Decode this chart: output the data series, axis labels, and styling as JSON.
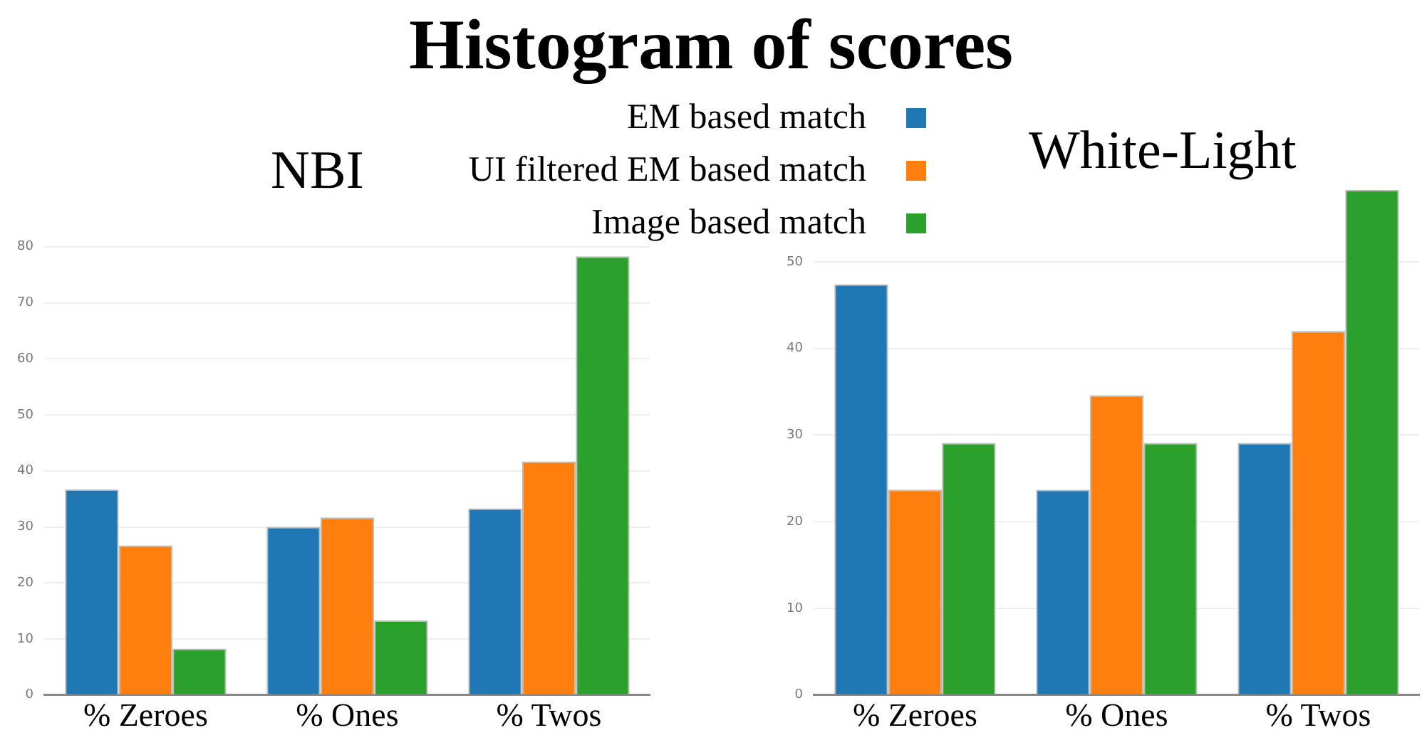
{
  "chart_data": [
    {
      "type": "bar",
      "title": "Histogram of scores",
      "subtitle": "NBI",
      "categories": [
        "% Zeroes",
        "% Ones",
        "% Twos"
      ],
      "series": [
        {
          "name": "EM based match",
          "color": "#1f77b4",
          "values": [
            36.7,
            30,
            33.3
          ]
        },
        {
          "name": "UI filtered EM based match",
          "color": "#ff7f0e",
          "values": [
            26.7,
            31.7,
            41.7
          ]
        },
        {
          "name": "Image based match",
          "color": "#2ca02c",
          "values": [
            8.3,
            13.3,
            78.3
          ]
        }
      ],
      "ylim": [
        0,
        80
      ],
      "yticks": [
        0,
        10,
        20,
        30,
        40,
        50,
        60,
        70,
        80
      ],
      "grid": "y",
      "legend": "top right"
    },
    {
      "type": "bar",
      "title": "White-Light",
      "categories": [
        "% Zeroes",
        "% Ones",
        "% Twos"
      ],
      "series": [
        {
          "color": "#1f77b4",
          "values": [
            47.4,
            23.7,
            29.1
          ]
        },
        {
          "color": "#ff7f0e",
          "values": [
            23.7,
            34.6,
            42
          ]
        },
        {
          "color": "#2ca02c",
          "values": [
            29.1,
            29.1,
            58.3
          ]
        }
      ],
      "ylim": [
        0,
        58.3
      ],
      "yticks": [
        0,
        10,
        20,
        30,
        40,
        50
      ],
      "grid": "y"
    }
  ]
}
